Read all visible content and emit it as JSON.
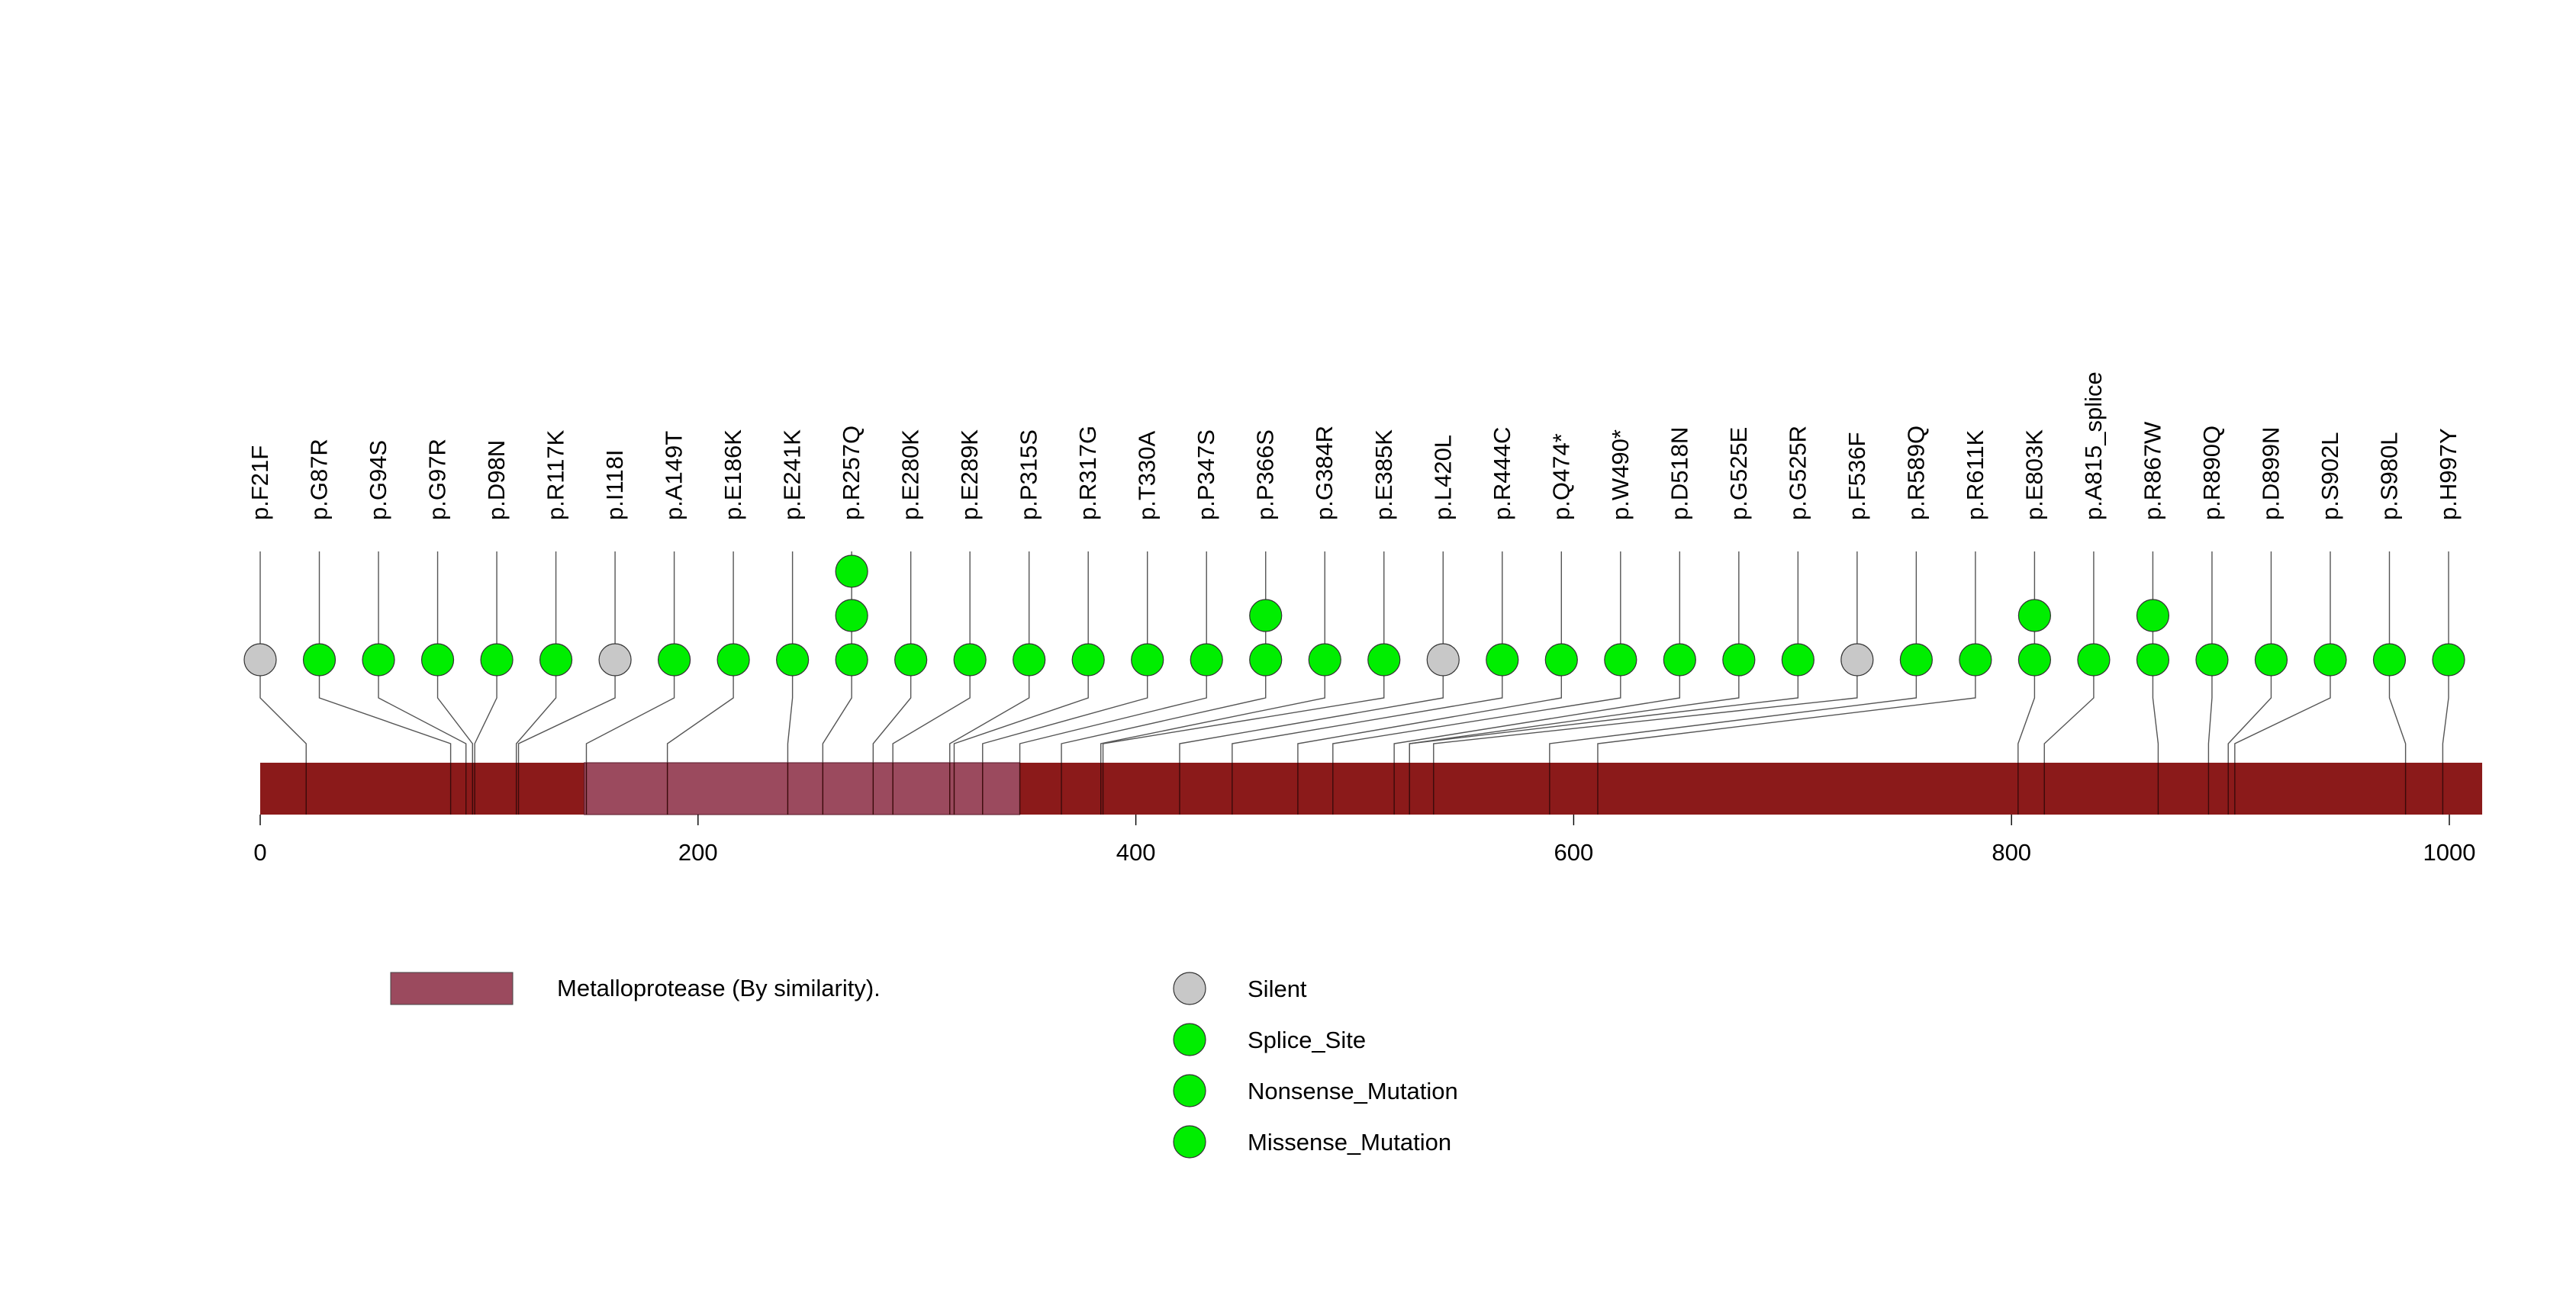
{
  "chart_data": {
    "type": "lollipop",
    "protein_length": 1015,
    "x_ticks": [
      0,
      200,
      400,
      600,
      800,
      1000
    ],
    "x_tick_labels": [
      "0",
      "200",
      "400",
      "600",
      "800",
      "1000"
    ],
    "domains": [
      {
        "name": "Metalloprotease (By similarity).",
        "start": 148,
        "end": 347
      }
    ],
    "legend": {
      "domain_label": "Metalloprotease (By similarity).",
      "mutation_types": [
        {
          "label": "Silent",
          "color": "#c8c8c8"
        },
        {
          "label": "Splice_Site",
          "color": "#00ee00"
        },
        {
          "label": "Nonsense_Mutation",
          "color": "#00ee00"
        },
        {
          "label": "Missense_Mutation",
          "color": "#00ee00"
        }
      ]
    },
    "colors": {
      "backbone": "#8b1a1a",
      "domain": "#9b4a5e",
      "silent": "#c8c8c8",
      "mutation": "#00ee00"
    },
    "mutations": [
      {
        "label": "p.F21F",
        "position": 21,
        "count": 1,
        "type": "Silent"
      },
      {
        "label": "p.G87R",
        "position": 87,
        "count": 1,
        "type": "Missense_Mutation"
      },
      {
        "label": "p.G94S",
        "position": 94,
        "count": 1,
        "type": "Missense_Mutation"
      },
      {
        "label": "p.G97R",
        "position": 97,
        "count": 1,
        "type": "Missense_Mutation"
      },
      {
        "label": "p.D98N",
        "position": 98,
        "count": 1,
        "type": "Missense_Mutation"
      },
      {
        "label": "p.R117K",
        "position": 117,
        "count": 1,
        "type": "Missense_Mutation"
      },
      {
        "label": "p.I118I",
        "position": 118,
        "count": 1,
        "type": "Silent"
      },
      {
        "label": "p.A149T",
        "position": 149,
        "count": 1,
        "type": "Missense_Mutation"
      },
      {
        "label": "p.E186K",
        "position": 186,
        "count": 1,
        "type": "Missense_Mutation"
      },
      {
        "label": "p.E241K",
        "position": 241,
        "count": 1,
        "type": "Missense_Mutation"
      },
      {
        "label": "p.R257Q",
        "position": 257,
        "count": 3,
        "type": "Missense_Mutation"
      },
      {
        "label": "p.E280K",
        "position": 280,
        "count": 1,
        "type": "Missense_Mutation"
      },
      {
        "label": "p.E289K",
        "position": 289,
        "count": 1,
        "type": "Missense_Mutation"
      },
      {
        "label": "p.P315S",
        "position": 315,
        "count": 1,
        "type": "Missense_Mutation"
      },
      {
        "label": "p.R317G",
        "position": 317,
        "count": 1,
        "type": "Missense_Mutation"
      },
      {
        "label": "p.T330A",
        "position": 330,
        "count": 1,
        "type": "Missense_Mutation"
      },
      {
        "label": "p.P347S",
        "position": 347,
        "count": 1,
        "type": "Missense_Mutation"
      },
      {
        "label": "p.P366S",
        "position": 366,
        "count": 2,
        "type": "Missense_Mutation"
      },
      {
        "label": "p.G384R",
        "position": 384,
        "count": 1,
        "type": "Missense_Mutation"
      },
      {
        "label": "p.E385K",
        "position": 385,
        "count": 1,
        "type": "Missense_Mutation"
      },
      {
        "label": "p.L420L",
        "position": 420,
        "count": 1,
        "type": "Silent"
      },
      {
        "label": "p.R444C",
        "position": 444,
        "count": 1,
        "type": "Missense_Mutation"
      },
      {
        "label": "p.Q474*",
        "position": 474,
        "count": 1,
        "type": "Nonsense_Mutation"
      },
      {
        "label": "p.W490*",
        "position": 490,
        "count": 1,
        "type": "Nonsense_Mutation"
      },
      {
        "label": "p.D518N",
        "position": 518,
        "count": 1,
        "type": "Missense_Mutation"
      },
      {
        "label": "p.G525E",
        "position": 525,
        "count": 1,
        "type": "Missense_Mutation"
      },
      {
        "label": "p.G525R",
        "position": 525,
        "count": 1,
        "type": "Missense_Mutation"
      },
      {
        "label": "p.F536F",
        "position": 536,
        "count": 1,
        "type": "Silent"
      },
      {
        "label": "p.R589Q",
        "position": 589,
        "count": 1,
        "type": "Missense_Mutation"
      },
      {
        "label": "p.R611K",
        "position": 611,
        "count": 1,
        "type": "Missense_Mutation"
      },
      {
        "label": "p.E803K",
        "position": 803,
        "count": 2,
        "type": "Missense_Mutation"
      },
      {
        "label": "p.A815_splice",
        "position": 815,
        "count": 1,
        "type": "Splice_Site"
      },
      {
        "label": "p.R867W",
        "position": 867,
        "count": 2,
        "type": "Missense_Mutation"
      },
      {
        "label": "p.R890Q",
        "position": 890,
        "count": 1,
        "type": "Missense_Mutation"
      },
      {
        "label": "p.D899N",
        "position": 899,
        "count": 1,
        "type": "Missense_Mutation"
      },
      {
        "label": "p.S902L",
        "position": 902,
        "count": 1,
        "type": "Missense_Mutation"
      },
      {
        "label": "p.S980L",
        "position": 980,
        "count": 1,
        "type": "Missense_Mutation"
      },
      {
        "label": "p.H997Y",
        "position": 997,
        "count": 1,
        "type": "Missense_Mutation"
      }
    ]
  }
}
